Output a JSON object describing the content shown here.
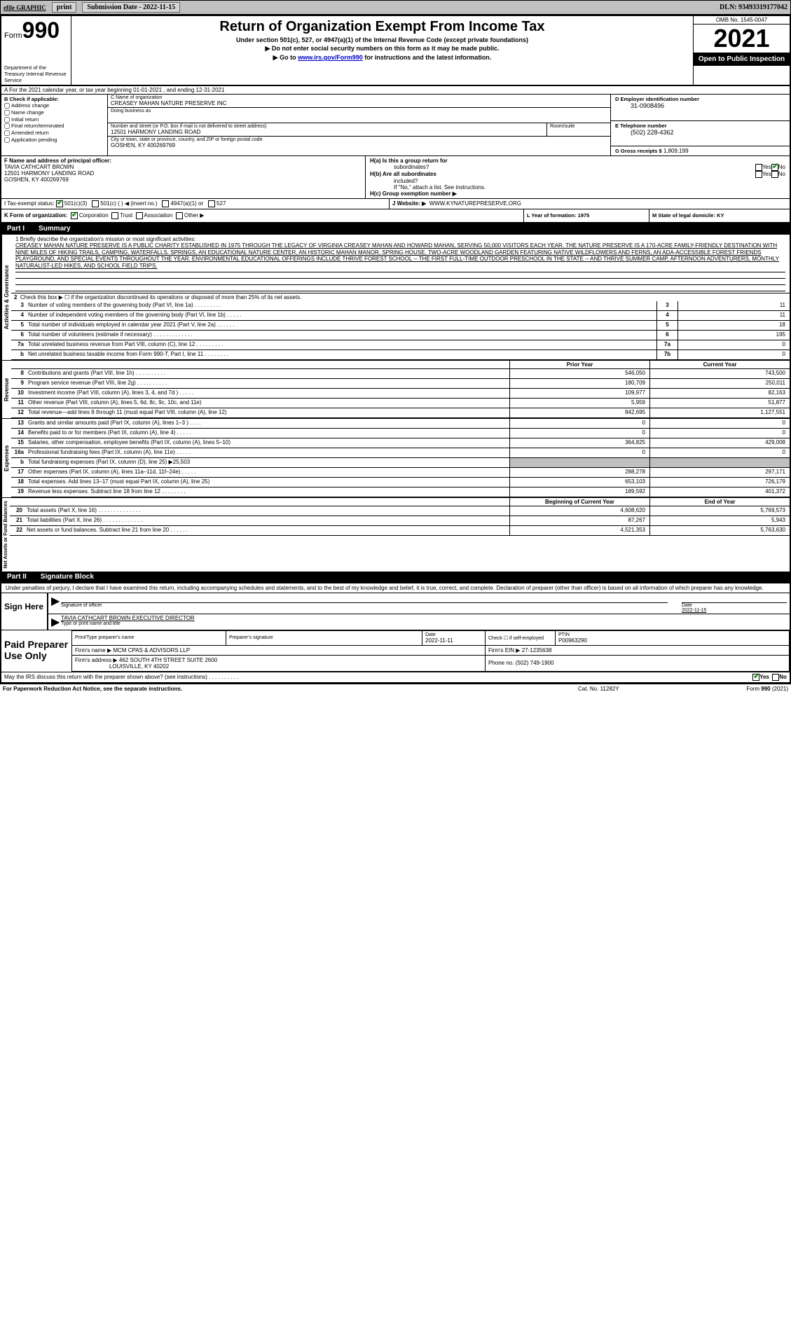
{
  "top_bar": {
    "efile_label": "efile GRAPHIC",
    "print_btn": "print",
    "submission_btn": "Submission Date - 2022-11-15",
    "dln": "DLN: 93493319177042"
  },
  "header": {
    "form_label": "Form",
    "form_number": "990",
    "dept": "Department of the Treasury\nInternal Revenue Service",
    "title": "Return of Organization Exempt From Income Tax",
    "sub1": "Under section 501(c), 527, or 4947(a)(1) of the Internal Revenue Code (except private foundations)",
    "sub2": "▶ Do not enter social security numbers on this form as it may be made public.",
    "sub3_prefix": "▶ Go to ",
    "sub3_link": "www.irs.gov/Form990",
    "sub3_suffix": " for instructions and the latest information.",
    "omb": "OMB No. 1545-0047",
    "year": "2021",
    "open_public": "Open to Public\nInspection"
  },
  "row_a": {
    "line_a": "A For the 2021 calendar year, or tax year beginning 01-01-2021   , and ending 12-31-2021",
    "b_label": "B Check if applicable:",
    "b_opts": [
      "Address change",
      "Name change",
      "Initial return",
      "Final return/terminated",
      "Amended return",
      "Application pending"
    ],
    "c_name_label": "C Name of organization",
    "c_name": "CREASEY MAHAN NATURE PRESERVE INC",
    "dba_label": "Doing business as",
    "dba": "",
    "addr_label": "Number and street (or P.O. box if mail is not delivered to street address)",
    "addr": "12501 HARMONY LANDING ROAD",
    "room_label": "Room/suite",
    "city_label": "City or town, state or province, country, and ZIP or foreign postal code",
    "city": "GOSHEN, KY  400269769",
    "d_label": "D Employer identification number",
    "d_val": "31-0908496",
    "e_label": "E Telephone number",
    "e_val": "(502) 228-4362",
    "g_label": "G Gross receipts $",
    "g_val": "1,809,199"
  },
  "row_fh": {
    "f_label": "F  Name and address of principal officer:",
    "f_val1": "TAVIA CATHCART BROWN",
    "f_val2": "12501 HARMONY LANDING ROAD",
    "f_val3": "GOSHEN, KY  400269769",
    "ha_label": "H(a)  Is this a group return for",
    "ha_sub": "subordinates?",
    "hb_label": "H(b)  Are all subordinates",
    "hb_sub": "included?",
    "h_note": "If \"No,\" attach a list. See instructions.",
    "hc_label": "H(c)  Group exemption number ▶"
  },
  "row_i": {
    "label": "I   Tax-exempt status:",
    "opts": [
      "501(c)(3)",
      "501(c) (  ) ◀ (insert no.)",
      "4947(a)(1) or",
      "527"
    ],
    "checked": 0
  },
  "row_j": {
    "label": "J   Website: ▶",
    "val": "WWW.KYNATUREPRESERVE.ORG"
  },
  "row_k": {
    "label": "K Form of organization:",
    "opts": [
      "Corporation",
      "Trust",
      "Association",
      "Other ▶"
    ],
    "checked": 0
  },
  "row_l": {
    "label": "L Year of formation: 1975"
  },
  "row_m": {
    "label": "M State of legal domicile: KY"
  },
  "part1_header": {
    "num": "Part I",
    "title": "Summary"
  },
  "mission": {
    "prefix": "1   Briefly describe the organization's mission or most significant activities:",
    "text": "CREASEY MAHAN NATURE PRESERVE IS A PUBLIC CHARITY ESTABLISHED IN 1975 THROUGH THE LEGACY OF VIRGINIA CREASEY MAHAN AND HOWARD MAHAN, SERVING 50,000 VISITORS EACH YEAR. THE NATURE PRESERVE IS A 170-ACRE FAMILY-FRIENDLY DESTINATION WITH NINE MILES OF HIKING TRAILS, CAMPING, WATERFALLS, SPRINGS, AN EDUCATIONAL NATURE CENTER, AN HISTORIC MAHAN MANOR, SPRING HOUSE, TWO-ACRE WOODLAND GARDEN FEATURING NATIVE WILDFLOWERS AND FERNS, AN ADA-ACCESSIBLE FOREST FRIENDS PLAYGROUND, AND SPECIAL EVENTS THROUGHOUT THE YEAR. ENVIRONMENTAL EDUCATIONAL OFFERINGS INCLUDE THRIVE FOREST SCHOOL -- THE FIRST FULL-TIME OUTDOOR PRESCHOOL IN THE STATE -- AND THRIVE SUMMER CAMP, AFTERNOON ADVENTURERS, MONTHLY NATURALIST-LED HIKES, AND SCHOOL FIELD TRIPS."
  },
  "summary_lines": {
    "l2": "Check this box ▶ ☐ if the organization discontinued its operations or disposed of more than 25% of its net assets.",
    "l3": {
      "desc": "Number of voting members of the governing body (Part VI, line 1a)  .    .    .    .    .    .    .    .    .",
      "box": "3",
      "val": "11"
    },
    "l4": {
      "desc": "Number of independent voting members of the governing body (Part VI, line 1b)  .    .    .    .    .",
      "box": "4",
      "val": "11"
    },
    "l5": {
      "desc": "Total number of individuals employed in calendar year 2021 (Part V, line 2a)  .    .    .    .    .    .",
      "box": "5",
      "val": "18"
    },
    "l6": {
      "desc": "Total number of volunteers (estimate if necessary)  .    .    .    .    .    .    .    .    .    .    .    .    .",
      "box": "6",
      "val": "195"
    },
    "l7a": {
      "desc": "Total unrelated business revenue from Part VIII, column (C), line 12  .    .    .    .    .    .    .    .    .",
      "box": "7a",
      "val": "0"
    },
    "l7b": {
      "desc": "Net unrelated business taxable income from Form 990-T, Part I, line 11  .    .    .    .    .    .    .    .",
      "box": "7b",
      "val": "0"
    }
  },
  "revenue_head": {
    "prior": "Prior Year",
    "current": "Current Year"
  },
  "revenue": [
    {
      "n": "8",
      "desc": "Contributions and grants (Part VIII, line 1h)  .    .    .    .    .    .    .    .    .    .",
      "p": "546,050",
      "c": "743,500"
    },
    {
      "n": "9",
      "desc": "Program service revenue (Part VIII, line 2g)  .    .    .    .    .    .    .    .    .    .",
      "p": "180,709",
      "c": "250,011"
    },
    {
      "n": "10",
      "desc": "Investment income (Part VIII, column (A), lines 3, 4, and 7d )  .    .    .    .    .",
      "p": "109,977",
      "c": "82,163"
    },
    {
      "n": "11",
      "desc": "Other revenue (Part VIII, column (A), lines 5, 6d, 8c, 9c, 10c, and 11e)",
      "p": "5,959",
      "c": "51,877"
    },
    {
      "n": "12",
      "desc": "Total revenue—add lines 8 through 11 (must equal Part VIII, column (A), line 12)",
      "p": "842,695",
      "c": "1,127,551"
    }
  ],
  "expenses": [
    {
      "n": "13",
      "desc": "Grants and similar amounts paid (Part IX, column (A), lines 1–3 )  .    .    .    .",
      "p": "0",
      "c": "0"
    },
    {
      "n": "14",
      "desc": "Benefits paid to or for members (Part IX, column (A), line 4)  .    .    .    .    .",
      "p": "0",
      "c": "0"
    },
    {
      "n": "15",
      "desc": "Salaries, other compensation, employee benefits (Part IX, column (A), lines 5–10)",
      "p": "364,825",
      "c": "429,008"
    },
    {
      "n": "16a",
      "desc": "Professional fundraising fees (Part IX, column (A), line 11e)  .    .    .    .    .",
      "p": "0",
      "c": "0"
    },
    {
      "n": "b",
      "desc": "Total fundraising expenses (Part IX, column (D), line 25) ▶25,503",
      "p": "",
      "c": "",
      "shaded": true
    },
    {
      "n": "17",
      "desc": "Other expenses (Part IX, column (A), lines 11a–11d, 11f–24e)  .    .    .    .    .",
      "p": "288,278",
      "c": "297,171"
    },
    {
      "n": "18",
      "desc": "Total expenses. Add lines 13–17 (must equal Part IX, column (A), line 25)",
      "p": "653,103",
      "c": "726,179"
    },
    {
      "n": "19",
      "desc": "Revenue less expenses. Subtract line 18 from line 12  .    .    .    .    .    .    .    .",
      "p": "189,592",
      "c": "401,372"
    }
  ],
  "netassets_head": {
    "begin": "Beginning of Current Year",
    "end": "End of Year"
  },
  "netassets": [
    {
      "n": "20",
      "desc": "Total assets (Part X, line 16)  .    .    .    .    .    .    .    .    .    .    .    .    .    .",
      "p": "4,608,620",
      "c": "5,769,573"
    },
    {
      "n": "21",
      "desc": "Total liabilities (Part X, line 26)  .    .    .    .    .    .    .    .    .    .    .    .    .",
      "p": "87,267",
      "c": "5,943"
    },
    {
      "n": "22",
      "desc": "Net assets or fund balances. Subtract line 21 from line 20  .    .    .    .    .    .",
      "p": "4,521,353",
      "c": "5,763,630"
    }
  ],
  "part2_header": {
    "num": "Part II",
    "title": "Signature Block"
  },
  "sig": {
    "declare": "Under penalties of perjury, I declare that I have examined this return, including accompanying schedules and statements, and to the best of my knowledge and belief, it is true, correct, and complete. Declaration of preparer (other than officer) is based on all information of which preparer has any knowledge.",
    "sign_here": "Sign\nHere",
    "sig_label": "Signature of officer",
    "date_label": "Date",
    "date_val": "2022-11-15",
    "name": "TAVIA CATHCART BROWN  EXECUTIVE DIRECTOR",
    "name_label": "Type or print name and title"
  },
  "paid": {
    "label": "Paid\nPreparer\nUse Only",
    "h1": "Print/Type preparer's name",
    "v1": "",
    "h2": "Preparer's signature",
    "v2": "",
    "h3": "Date",
    "v3": "2022-11-11",
    "h4": "Check ☐ if self-employed",
    "v4": "",
    "h5": "PTIN",
    "v5": "P00963290",
    "firm_name_label": "Firm's name    ▶",
    "firm_name": "MCM CPAS & ADVISORS LLP",
    "firm_ein_label": "Firm's EIN ▶",
    "firm_ein": "27-1235638",
    "firm_addr_label": "Firm's address ▶",
    "firm_addr1": "462 SOUTH 4TH STREET SUITE 2600",
    "firm_addr2": "LOUISVILLE, KY  40202",
    "phone_label": "Phone no.",
    "phone": "(502) 749-1900"
  },
  "discuss": {
    "text": "May the IRS discuss this return with the preparer shown above? (see instructions)  .    .    .    .    .    .    .    .    .    .",
    "yes": "Yes",
    "no": "No"
  },
  "footer": {
    "left": "For Paperwork Reduction Act Notice, see the separate instructions.",
    "mid": "Cat. No. 11282Y",
    "right": "Form 990 (2021)"
  },
  "labels": {
    "activities_governance": "Activities & Governance",
    "revenue": "Revenue",
    "expenses": "Expenses",
    "netassets": "Net Assets or\nFund Balances"
  }
}
